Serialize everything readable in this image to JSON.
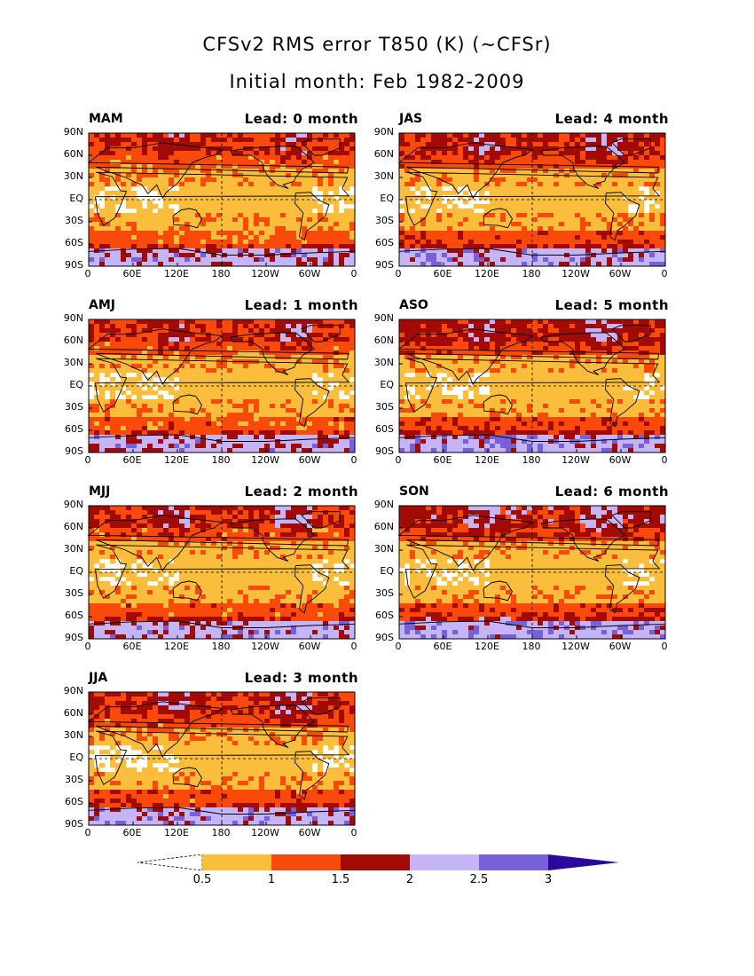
{
  "title_line1": "CFSv2 RMS error T850 (K) (~CFSr)",
  "title_line2": "Initial month: Feb 1982-2009",
  "lat_labels": [
    "90N",
    "60N",
    "30N",
    "EQ",
    "30S",
    "60S",
    "90S"
  ],
  "lon_labels": [
    "0",
    "60E",
    "120E",
    "180",
    "120W",
    "60W",
    "0"
  ],
  "panels": [
    {
      "season": "MAM",
      "lead": "Lead: 0 month",
      "level": 0
    },
    {
      "season": "AMJ",
      "lead": "Lead: 1 month",
      "level": 1
    },
    {
      "season": "MJJ",
      "lead": "Lead: 2 month",
      "level": 2
    },
    {
      "season": "JJA",
      "lead": "Lead: 3 month",
      "level": 3
    },
    {
      "season": "JAS",
      "lead": "Lead: 4 month",
      "level": 4
    },
    {
      "season": "ASO",
      "lead": "Lead: 5 month",
      "level": 5
    },
    {
      "season": "SON",
      "lead": "Lead: 6 month",
      "level": 6
    }
  ],
  "colorbar": {
    "labels": [
      "0.5",
      "1",
      "1.5",
      "2",
      "2.5",
      "3"
    ],
    "colors": [
      "#fbbd3c",
      "#f94a0c",
      "#a10b03",
      "#c5b4f8",
      "#7860d8",
      "#2a0a9c"
    ],
    "below_color": "#ffffff"
  }
}
